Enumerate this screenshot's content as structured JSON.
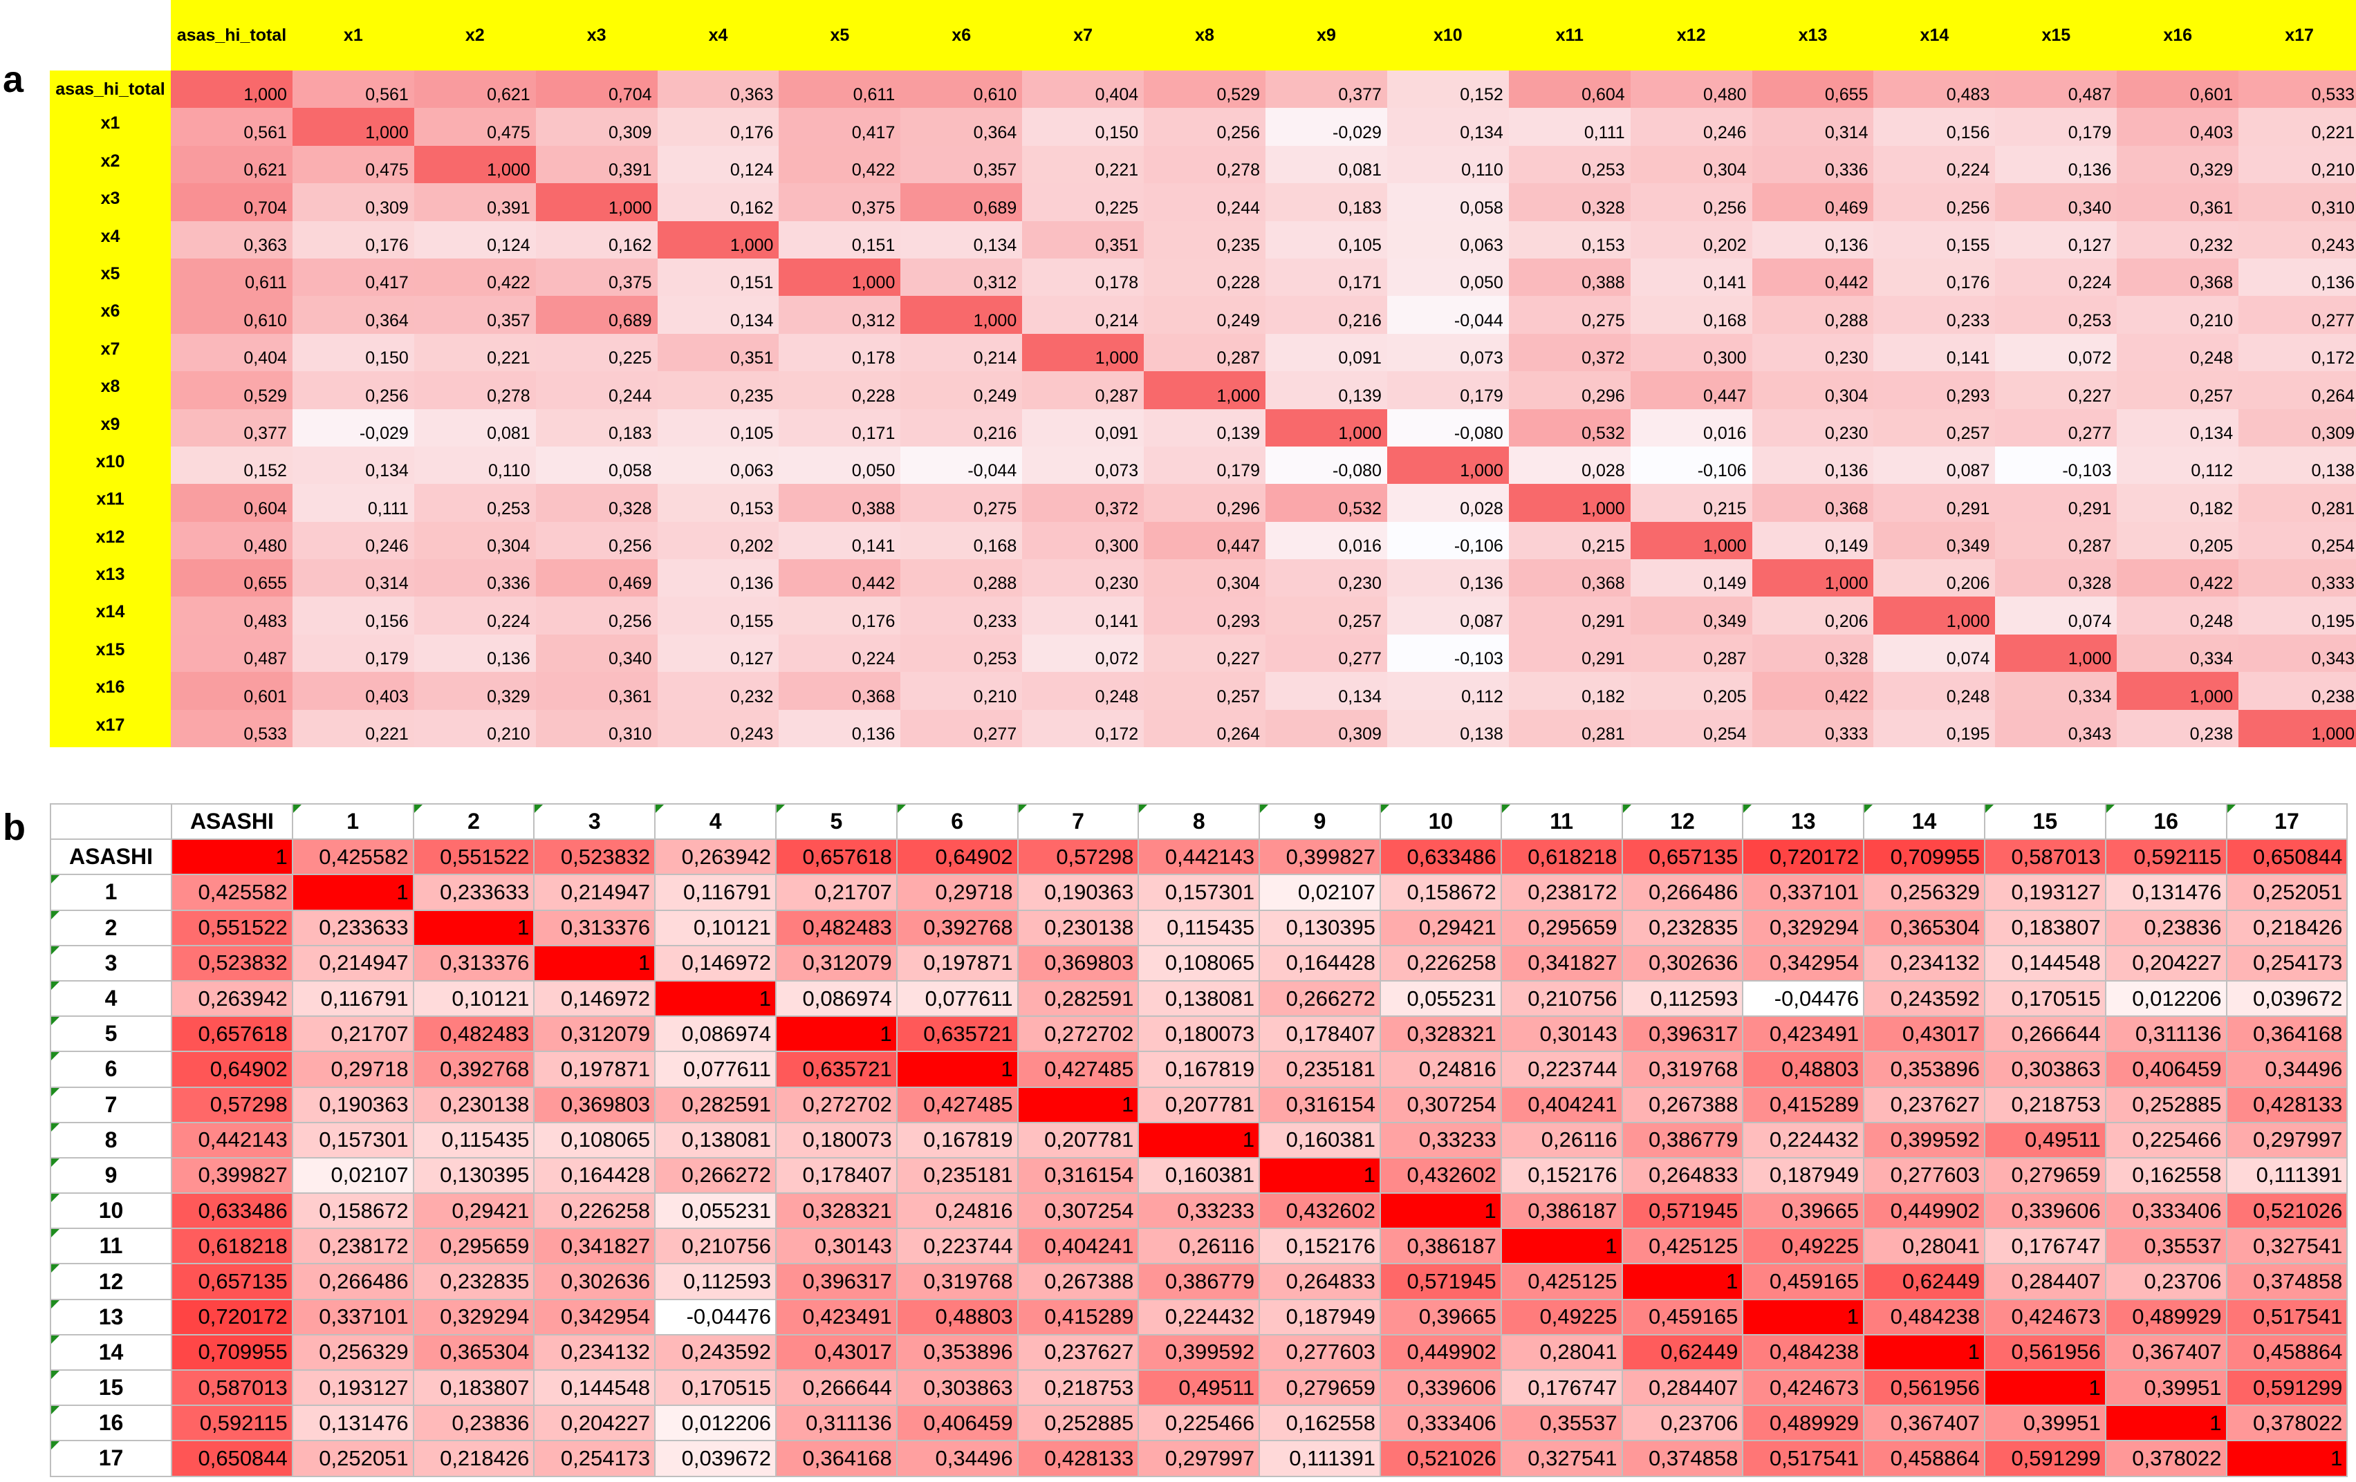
{
  "panels": {
    "a_label": "a",
    "b_label": "b"
  },
  "chart_data": [
    {
      "type": "heatmap",
      "panel": "a",
      "labels": [
        "asas_hi_total",
        "x1",
        "x2",
        "x3",
        "x4",
        "x5",
        "x6",
        "x7",
        "x8",
        "x9",
        "x10",
        "x11",
        "x12",
        "x13",
        "x14",
        "x15",
        "x16",
        "x17"
      ],
      "matrix": [
        [
          "1,000",
          "0,561",
          "0,621",
          "0,704",
          "0,363",
          "0,611",
          "0,610",
          "0,404",
          "0,529",
          "0,377",
          "0,152",
          "0,604",
          "0,480",
          "0,655",
          "0,483",
          "0,487",
          "0,601",
          "0,533"
        ],
        [
          "0,561",
          "1,000",
          "0,475",
          "0,309",
          "0,176",
          "0,417",
          "0,364",
          "0,150",
          "0,256",
          "-0,029",
          "0,134",
          "0,111",
          "0,246",
          "0,314",
          "0,156",
          "0,179",
          "0,403",
          "0,221"
        ],
        [
          "0,621",
          "0,475",
          "1,000",
          "0,391",
          "0,124",
          "0,422",
          "0,357",
          "0,221",
          "0,278",
          "0,081",
          "0,110",
          "0,253",
          "0,304",
          "0,336",
          "0,224",
          "0,136",
          "0,329",
          "0,210"
        ],
        [
          "0,704",
          "0,309",
          "0,391",
          "1,000",
          "0,162",
          "0,375",
          "0,689",
          "0,225",
          "0,244",
          "0,183",
          "0,058",
          "0,328",
          "0,256",
          "0,469",
          "0,256",
          "0,340",
          "0,361",
          "0,310"
        ],
        [
          "0,363",
          "0,176",
          "0,124",
          "0,162",
          "1,000",
          "0,151",
          "0,134",
          "0,351",
          "0,235",
          "0,105",
          "0,063",
          "0,153",
          "0,202",
          "0,136",
          "0,155",
          "0,127",
          "0,232",
          "0,243"
        ],
        [
          "0,611",
          "0,417",
          "0,422",
          "0,375",
          "0,151",
          "1,000",
          "0,312",
          "0,178",
          "0,228",
          "0,171",
          "0,050",
          "0,388",
          "0,141",
          "0,442",
          "0,176",
          "0,224",
          "0,368",
          "0,136"
        ],
        [
          "0,610",
          "0,364",
          "0,357",
          "0,689",
          "0,134",
          "0,312",
          "1,000",
          "0,214",
          "0,249",
          "0,216",
          "-0,044",
          "0,275",
          "0,168",
          "0,288",
          "0,233",
          "0,253",
          "0,210",
          "0,277"
        ],
        [
          "0,404",
          "0,150",
          "0,221",
          "0,225",
          "0,351",
          "0,178",
          "0,214",
          "1,000",
          "0,287",
          "0,091",
          "0,073",
          "0,372",
          "0,300",
          "0,230",
          "0,141",
          "0,072",
          "0,248",
          "0,172"
        ],
        [
          "0,529",
          "0,256",
          "0,278",
          "0,244",
          "0,235",
          "0,228",
          "0,249",
          "0,287",
          "1,000",
          "0,139",
          "0,179",
          "0,296",
          "0,447",
          "0,304",
          "0,293",
          "0,227",
          "0,257",
          "0,264"
        ],
        [
          "0,377",
          "-0,029",
          "0,081",
          "0,183",
          "0,105",
          "0,171",
          "0,216",
          "0,091",
          "0,139",
          "1,000",
          "-0,080",
          "0,532",
          "0,016",
          "0,230",
          "0,257",
          "0,277",
          "0,134",
          "0,309"
        ],
        [
          "0,152",
          "0,134",
          "0,110",
          "0,058",
          "0,063",
          "0,050",
          "-0,044",
          "0,073",
          "0,179",
          "-0,080",
          "1,000",
          "0,028",
          "-0,106",
          "0,136",
          "0,087",
          "-0,103",
          "0,112",
          "0,138"
        ],
        [
          "0,604",
          "0,111",
          "0,253",
          "0,328",
          "0,153",
          "0,388",
          "0,275",
          "0,372",
          "0,296",
          "0,532",
          "0,028",
          "1,000",
          "0,215",
          "0,368",
          "0,291",
          "0,291",
          "0,182",
          "0,281"
        ],
        [
          "0,480",
          "0,246",
          "0,304",
          "0,256",
          "0,202",
          "0,141",
          "0,168",
          "0,300",
          "0,447",
          "0,016",
          "-0,106",
          "0,215",
          "1,000",
          "0,149",
          "0,349",
          "0,287",
          "0,205",
          "0,254"
        ],
        [
          "0,655",
          "0,314",
          "0,336",
          "0,469",
          "0,136",
          "0,442",
          "0,288",
          "0,230",
          "0,304",
          "0,230",
          "0,136",
          "0,368",
          "0,149",
          "1,000",
          "0,206",
          "0,328",
          "0,422",
          "0,333"
        ],
        [
          "0,483",
          "0,156",
          "0,224",
          "0,256",
          "0,155",
          "0,176",
          "0,233",
          "0,141",
          "0,293",
          "0,257",
          "0,087",
          "0,291",
          "0,349",
          "0,206",
          "1,000",
          "0,074",
          "0,248",
          "0,195"
        ],
        [
          "0,487",
          "0,179",
          "0,136",
          "0,340",
          "0,127",
          "0,224",
          "0,253",
          "0,072",
          "0,227",
          "0,277",
          "-0,103",
          "0,291",
          "0,287",
          "0,328",
          "0,074",
          "1,000",
          "0,334",
          "0,343"
        ],
        [
          "0,601",
          "0,403",
          "0,329",
          "0,361",
          "0,232",
          "0,368",
          "0,210",
          "0,248",
          "0,257",
          "0,134",
          "0,112",
          "0,182",
          "0,205",
          "0,422",
          "0,248",
          "0,334",
          "1,000",
          "0,238"
        ],
        [
          "0,533",
          "0,221",
          "0,210",
          "0,310",
          "0,243",
          "0,136",
          "0,277",
          "0,172",
          "0,264",
          "0,309",
          "0,138",
          "0,281",
          "0,254",
          "0,333",
          "0,195",
          "0,343",
          "0,238",
          "1,000"
        ]
      ],
      "header_color": "#ffff00",
      "color_high": "#f8696b",
      "color_low": "#fcfcff"
    },
    {
      "type": "heatmap",
      "panel": "b",
      "labels": [
        "ASASHI",
        "1",
        "2",
        "3",
        "4",
        "5",
        "6",
        "7",
        "8",
        "9",
        "10",
        "11",
        "12",
        "13",
        "14",
        "15",
        "16",
        "17"
      ],
      "matrix": [
        [
          "1",
          "0,425582",
          "0,551522",
          "0,523832",
          "0,263942",
          "0,657618",
          "0,64902",
          "0,57298",
          "0,442143",
          "0,399827",
          "0,633486",
          "0,618218",
          "0,657135",
          "0,720172",
          "0,709955",
          "0,587013",
          "0,592115",
          "0,650844"
        ],
        [
          "0,425582",
          "1",
          "0,233633",
          "0,214947",
          "0,116791",
          "0,21707",
          "0,29718",
          "0,190363",
          "0,157301",
          "0,02107",
          "0,158672",
          "0,238172",
          "0,266486",
          "0,337101",
          "0,256329",
          "0,193127",
          "0,131476",
          "0,252051"
        ],
        [
          "0,551522",
          "0,233633",
          "1",
          "0,313376",
          "0,10121",
          "0,482483",
          "0,392768",
          "0,230138",
          "0,115435",
          "0,130395",
          "0,29421",
          "0,295659",
          "0,232835",
          "0,329294",
          "0,365304",
          "0,183807",
          "0,23836",
          "0,218426"
        ],
        [
          "0,523832",
          "0,214947",
          "0,313376",
          "1",
          "0,146972",
          "0,312079",
          "0,197871",
          "0,369803",
          "0,108065",
          "0,164428",
          "0,226258",
          "0,341827",
          "0,302636",
          "0,342954",
          "0,234132",
          "0,144548",
          "0,204227",
          "0,254173"
        ],
        [
          "0,263942",
          "0,116791",
          "0,10121",
          "0,146972",
          "1",
          "0,086974",
          "0,077611",
          "0,282591",
          "0,138081",
          "0,266272",
          "0,055231",
          "0,210756",
          "0,112593",
          "-0,04476",
          "0,243592",
          "0,170515",
          "0,012206",
          "0,039672"
        ],
        [
          "0,657618",
          "0,21707",
          "0,482483",
          "0,312079",
          "0,086974",
          "1",
          "0,635721",
          "0,272702",
          "0,180073",
          "0,178407",
          "0,328321",
          "0,30143",
          "0,396317",
          "0,423491",
          "0,43017",
          "0,266644",
          "0,311136",
          "0,364168"
        ],
        [
          "0,64902",
          "0,29718",
          "0,392768",
          "0,197871",
          "0,077611",
          "0,635721",
          "1",
          "0,427485",
          "0,167819",
          "0,235181",
          "0,24816",
          "0,223744",
          "0,319768",
          "0,48803",
          "0,353896",
          "0,303863",
          "0,406459",
          "0,34496"
        ],
        [
          "0,57298",
          "0,190363",
          "0,230138",
          "0,369803",
          "0,282591",
          "0,272702",
          "0,427485",
          "1",
          "0,207781",
          "0,316154",
          "0,307254",
          "0,404241",
          "0,267388",
          "0,415289",
          "0,237627",
          "0,218753",
          "0,252885",
          "0,428133"
        ],
        [
          "0,442143",
          "0,157301",
          "0,115435",
          "0,108065",
          "0,138081",
          "0,180073",
          "0,167819",
          "0,207781",
          "1",
          "0,160381",
          "0,33233",
          "0,26116",
          "0,386779",
          "0,224432",
          "0,399592",
          "0,49511",
          "0,225466",
          "0,297997"
        ],
        [
          "0,399827",
          "0,02107",
          "0,130395",
          "0,164428",
          "0,266272",
          "0,178407",
          "0,235181",
          "0,316154",
          "0,160381",
          "1",
          "0,432602",
          "0,152176",
          "0,264833",
          "0,187949",
          "0,277603",
          "0,279659",
          "0,162558",
          "0,111391"
        ],
        [
          "0,633486",
          "0,158672",
          "0,29421",
          "0,226258",
          "0,055231",
          "0,328321",
          "0,24816",
          "0,307254",
          "0,33233",
          "0,432602",
          "1",
          "0,386187",
          "0,571945",
          "0,39665",
          "0,449902",
          "0,339606",
          "0,333406",
          "0,521026"
        ],
        [
          "0,618218",
          "0,238172",
          "0,295659",
          "0,341827",
          "0,210756",
          "0,30143",
          "0,223744",
          "0,404241",
          "0,26116",
          "0,152176",
          "0,386187",
          "1",
          "0,425125",
          "0,49225",
          "0,28041",
          "0,176747",
          "0,35537",
          "0,327541"
        ],
        [
          "0,657135",
          "0,266486",
          "0,232835",
          "0,302636",
          "0,112593",
          "0,396317",
          "0,319768",
          "0,267388",
          "0,386779",
          "0,264833",
          "0,571945",
          "0,425125",
          "1",
          "0,459165",
          "0,62449",
          "0,284407",
          "0,23706",
          "0,374858"
        ],
        [
          "0,720172",
          "0,337101",
          "0,329294",
          "0,342954",
          "-0,04476",
          "0,423491",
          "0,48803",
          "0,415289",
          "0,224432",
          "0,187949",
          "0,39665",
          "0,49225",
          "0,459165",
          "1",
          "0,484238",
          "0,424673",
          "0,489929",
          "0,517541"
        ],
        [
          "0,709955",
          "0,256329",
          "0,365304",
          "0,234132",
          "0,243592",
          "0,43017",
          "0,353896",
          "0,237627",
          "0,399592",
          "0,277603",
          "0,449902",
          "0,28041",
          "0,62449",
          "0,484238",
          "1",
          "0,561956",
          "0,367407",
          "0,458864"
        ],
        [
          "0,587013",
          "0,193127",
          "0,183807",
          "0,144548",
          "0,170515",
          "0,266644",
          "0,303863",
          "0,218753",
          "0,49511",
          "0,279659",
          "0,339606",
          "0,176747",
          "0,284407",
          "0,424673",
          "0,561956",
          "1",
          "0,39951",
          "0,591299"
        ],
        [
          "0,592115",
          "0,131476",
          "0,23836",
          "0,204227",
          "0,012206",
          "0,311136",
          "0,406459",
          "0,252885",
          "0,225466",
          "0,162558",
          "0,333406",
          "0,35537",
          "0,23706",
          "0,489929",
          "0,367407",
          "0,39951",
          "1",
          "0,378022"
        ],
        [
          "0,650844",
          "0,252051",
          "0,218426",
          "0,254173",
          "0,039672",
          "0,364168",
          "0,34496",
          "0,428133",
          "0,297997",
          "0,111391",
          "0,521026",
          "0,327541",
          "0,374858",
          "0,517541",
          "0,458864",
          "0,591299",
          "0,378022",
          "1"
        ]
      ],
      "color_high": "#ff0000",
      "color_low": "#ffffff",
      "grid_color": "#bfbfbf",
      "flag_color": "#1e8c1e"
    }
  ]
}
